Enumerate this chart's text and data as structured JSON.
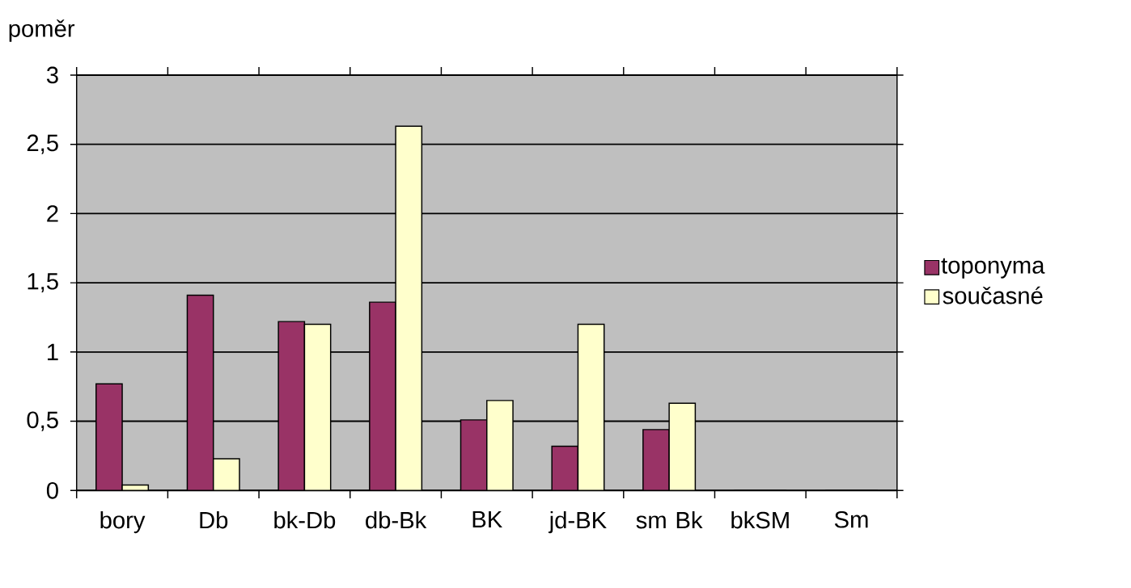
{
  "chart_data": {
    "type": "bar",
    "ylabel": "poměr",
    "categories": [
      "bory",
      "Db",
      "bk-Db",
      "db-Bk",
      "BK",
      "jd-BK",
      "sm Bk",
      "bkSM",
      "Sm"
    ],
    "series": [
      {
        "name": "toponyma",
        "color": "#993366",
        "values": [
          0.77,
          1.41,
          1.22,
          1.36,
          0.51,
          0.32,
          0.44,
          0,
          0
        ]
      },
      {
        "name": "současné",
        "color": "#ffffcc",
        "values": [
          0.04,
          0.23,
          1.2,
          2.63,
          0.65,
          1.2,
          0.63,
          0,
          0
        ]
      }
    ],
    "ylim": [
      0,
      3
    ],
    "yticks": [
      0,
      {
        "value": 0.5,
        "label": "0,5"
      },
      1,
      {
        "value": 1.5,
        "label": "1,5"
      },
      2,
      {
        "value": 2.5,
        "label": "2,5"
      },
      3
    ],
    "grid": "y",
    "legend": "right"
  }
}
